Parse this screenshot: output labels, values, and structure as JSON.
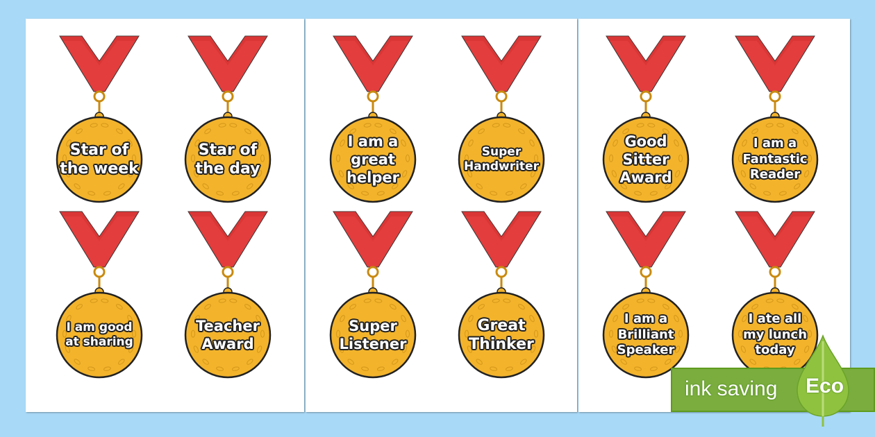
{
  "medals": [
    {
      "lines": [
        "Star of",
        "the week"
      ],
      "size": 22
    },
    {
      "lines": [
        "Star of",
        "the day"
      ],
      "size": 22
    },
    {
      "lines": [
        "I am a",
        "great",
        "helper"
      ],
      "size": 21
    },
    {
      "lines": [
        "Super",
        "Handwriter"
      ],
      "size": 17
    },
    {
      "lines": [
        "Good",
        "Sitter",
        "Award"
      ],
      "size": 21
    },
    {
      "lines": [
        "I am a",
        "Fantastic",
        "Reader"
      ],
      "size": 18
    },
    {
      "lines": [
        "I am good",
        "at sharing"
      ],
      "size": 17
    },
    {
      "lines": [
        "Teacher",
        "Award"
      ],
      "size": 21
    },
    {
      "lines": [
        "Super",
        "Listener"
      ],
      "size": 21
    },
    {
      "lines": [
        "Great",
        "Thinker"
      ],
      "size": 22
    },
    {
      "lines": [
        "I am a",
        "Brilliant",
        "Speaker"
      ],
      "size": 18
    },
    {
      "lines": [
        "I ate all",
        "my lunch",
        "today"
      ],
      "size": 18
    }
  ],
  "badge": {
    "label": "ink saving",
    "eco": "Eco"
  },
  "colors": {
    "background": "#a8d9f7",
    "ribbon": "#e33d3d",
    "gold": "#f3b42c",
    "eco_green": "#7aad3e"
  }
}
